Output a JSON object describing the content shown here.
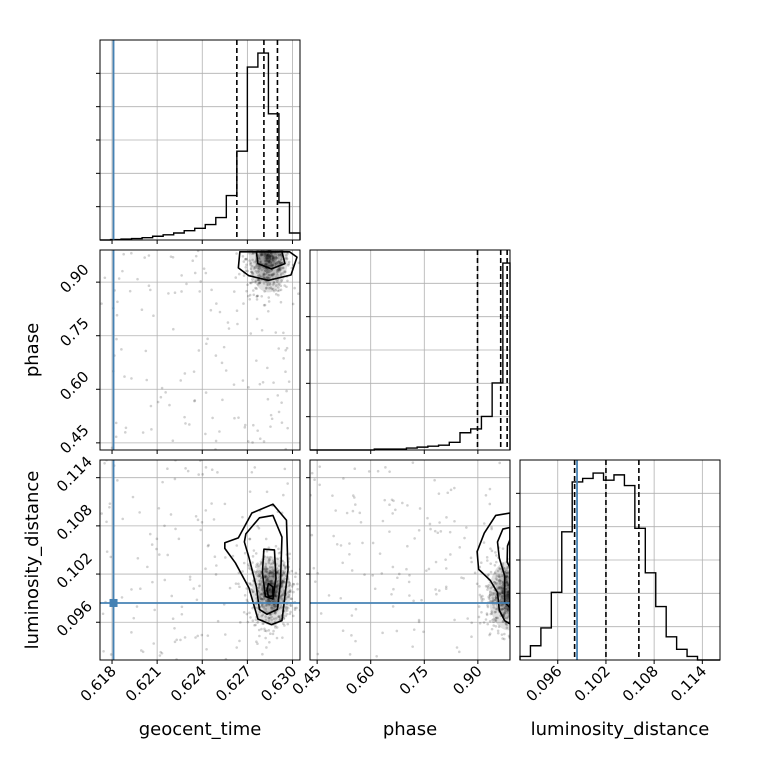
{
  "chart_data": {
    "type": "corner",
    "parameters": [
      "geocent_time",
      "phase",
      "luminosity_distance"
    ],
    "injection_color": "#4682b4",
    "injection": {
      "geocent_time": 0.6181,
      "luminosity_distance": 0.0984
    },
    "axes": {
      "geocent_time": {
        "label": "geocent_time",
        "range": [
          0.6172,
          0.6305
        ],
        "ticks": [
          0.618,
          0.621,
          0.624,
          0.627,
          0.63
        ],
        "tick_labels": [
          "0.618",
          "0.621",
          "0.624",
          "0.627",
          "0.630"
        ]
      },
      "phase": {
        "label": "phase",
        "range": [
          0.43,
          0.99
        ],
        "ticks": [
          0.45,
          0.6,
          0.75,
          0.9
        ],
        "tick_labels": [
          "0.45",
          "0.60",
          "0.75",
          "0.90"
        ]
      },
      "luminosity_distance": {
        "label": "luminosity_distance",
        "range": [
          0.0913,
          0.1162
        ],
        "ticks": [
          0.096,
          0.102,
          0.108,
          0.114
        ],
        "tick_labels": [
          "0.096",
          "0.102",
          "0.108",
          "0.114"
        ]
      }
    },
    "histograms": {
      "geocent_time": {
        "bin_edges": [
          0.6172,
          0.6179,
          0.6186,
          0.6193,
          0.62,
          0.6207,
          0.6214,
          0.6221,
          0.6228,
          0.6235,
          0.6242,
          0.6249,
          0.6256,
          0.6263,
          0.627,
          0.6277,
          0.6284,
          0.6291,
          0.6298,
          0.6305
        ],
        "counts": [
          0,
          1,
          2,
          3,
          5,
          8,
          11,
          15,
          20,
          25,
          33,
          48,
          95,
          190,
          370,
          400,
          270,
          80,
          15
        ],
        "quantiles": [
          0.6263,
          0.6281,
          0.629
        ]
      },
      "phase": {
        "bin_edges": [
          0.43,
          0.46,
          0.49,
          0.52,
          0.55,
          0.58,
          0.61,
          0.64,
          0.67,
          0.7,
          0.73,
          0.76,
          0.79,
          0.82,
          0.85,
          0.88,
          0.91,
          0.94,
          0.97,
          0.99
        ],
        "counts": [
          0,
          0,
          0,
          0,
          0,
          0,
          1,
          1,
          1,
          2,
          3,
          4,
          5,
          8,
          18,
          22,
          35,
          70,
          195
        ],
        "quantiles": [
          0.899,
          0.964,
          0.982
        ]
      },
      "luminosity_distance": {
        "bin_edges": [
          0.0913,
          0.0926,
          0.0939,
          0.0952,
          0.0965,
          0.0978,
          0.0991,
          0.1004,
          0.1017,
          0.103,
          0.1043,
          0.1056,
          0.1069,
          0.1082,
          0.1095,
          0.1108,
          0.1121,
          0.1134,
          0.1147,
          0.1162
        ],
        "counts": [
          2,
          8,
          18,
          38,
          72,
          100,
          102,
          105,
          101,
          104,
          98,
          74,
          49,
          30,
          13,
          6,
          2,
          0,
          0
        ],
        "quantiles": [
          0.0981,
          0.102,
          0.1061
        ]
      }
    },
    "panels_2d": {
      "phase_vs_geocent_time": {
        "x": "geocent_time",
        "y": "phase",
        "density_peak": [
          0.6284,
          0.968
        ],
        "contours": [
          [
            [
              0.6265,
              0.985
            ],
            [
              0.6264,
              0.94
            ],
            [
              0.6271,
              0.918
            ],
            [
              0.6284,
              0.905
            ],
            [
              0.6299,
              0.92
            ],
            [
              0.6303,
              0.97
            ],
            [
              0.6298,
              0.985
            ]
          ],
          [
            [
              0.6276,
              0.985
            ],
            [
              0.6277,
              0.952
            ],
            [
              0.6286,
              0.937
            ],
            [
              0.6295,
              0.952
            ],
            [
              0.6293,
              0.985
            ]
          ]
        ]
      },
      "luminosity_distance_vs_geocent_time": {
        "x": "geocent_time",
        "y": "luminosity_distance",
        "density_peak": [
          0.6286,
          0.0999
        ],
        "contours": [
          [
            [
              0.6255,
              0.1059
            ],
            [
              0.6264,
              0.1065
            ],
            [
              0.6273,
              0.1096
            ],
            [
              0.6287,
              0.1107
            ],
            [
              0.6296,
              0.1087
            ],
            [
              0.6297,
              0.1025
            ],
            [
              0.6294,
              0.0977
            ],
            [
              0.6293,
              0.0962
            ],
            [
              0.6286,
              0.0957
            ],
            [
              0.6277,
              0.0964
            ],
            [
              0.6271,
              0.1003
            ],
            [
              0.6262,
              0.1034
            ],
            [
              0.6255,
              0.1052
            ]
          ],
          [
            [
              0.6269,
              0.107
            ],
            [
              0.6278,
              0.109
            ],
            [
              0.6287,
              0.1093
            ],
            [
              0.6293,
              0.1066
            ],
            [
              0.6292,
              0.1009
            ],
            [
              0.629,
              0.0976
            ],
            [
              0.6283,
              0.097
            ],
            [
              0.6278,
              0.0976
            ],
            [
              0.6276,
              0.1004
            ],
            [
              0.6271,
              0.1041
            ],
            [
              0.6268,
              0.106
            ]
          ],
          [
            [
              0.6281,
              0.1051
            ],
            [
              0.6288,
              0.105
            ],
            [
              0.6289,
              0.1015
            ],
            [
              0.6287,
              0.0989
            ],
            [
              0.6282,
              0.0992
            ],
            [
              0.628,
              0.1022
            ]
          ],
          [
            [
              0.6284,
              0.1008
            ],
            [
              0.6287,
              0.1004
            ],
            [
              0.6287,
              0.0993
            ],
            [
              0.6284,
              0.0992
            ],
            [
              0.6283,
              0.1
            ]
          ]
        ]
      },
      "luminosity_distance_vs_phase": {
        "x": "phase",
        "y": "luminosity_distance",
        "density_peak": [
          0.985,
          0.0993
        ],
        "contours": [
          [
            [
              0.99,
              0.1096
            ],
            [
              0.95,
              0.1093
            ],
            [
              0.918,
              0.1071
            ],
            [
              0.898,
              0.1048
            ],
            [
              0.902,
              0.1026
            ],
            [
              0.935,
              0.1012
            ],
            [
              0.955,
              0.0997
            ],
            [
              0.96,
              0.0975
            ],
            [
              0.975,
              0.0962
            ],
            [
              0.99,
              0.0958
            ]
          ],
          [
            [
              0.99,
              0.1078
            ],
            [
              0.97,
              0.1076
            ],
            [
              0.955,
              0.106
            ],
            [
              0.96,
              0.104
            ],
            [
              0.975,
              0.1018
            ],
            [
              0.975,
              0.0985
            ],
            [
              0.99,
              0.0978
            ]
          ],
          [
            [
              0.99,
              0.1063
            ],
            [
              0.983,
              0.1055
            ],
            [
              0.982,
              0.1035
            ],
            [
              0.99,
              0.1028
            ]
          ]
        ]
      }
    }
  }
}
